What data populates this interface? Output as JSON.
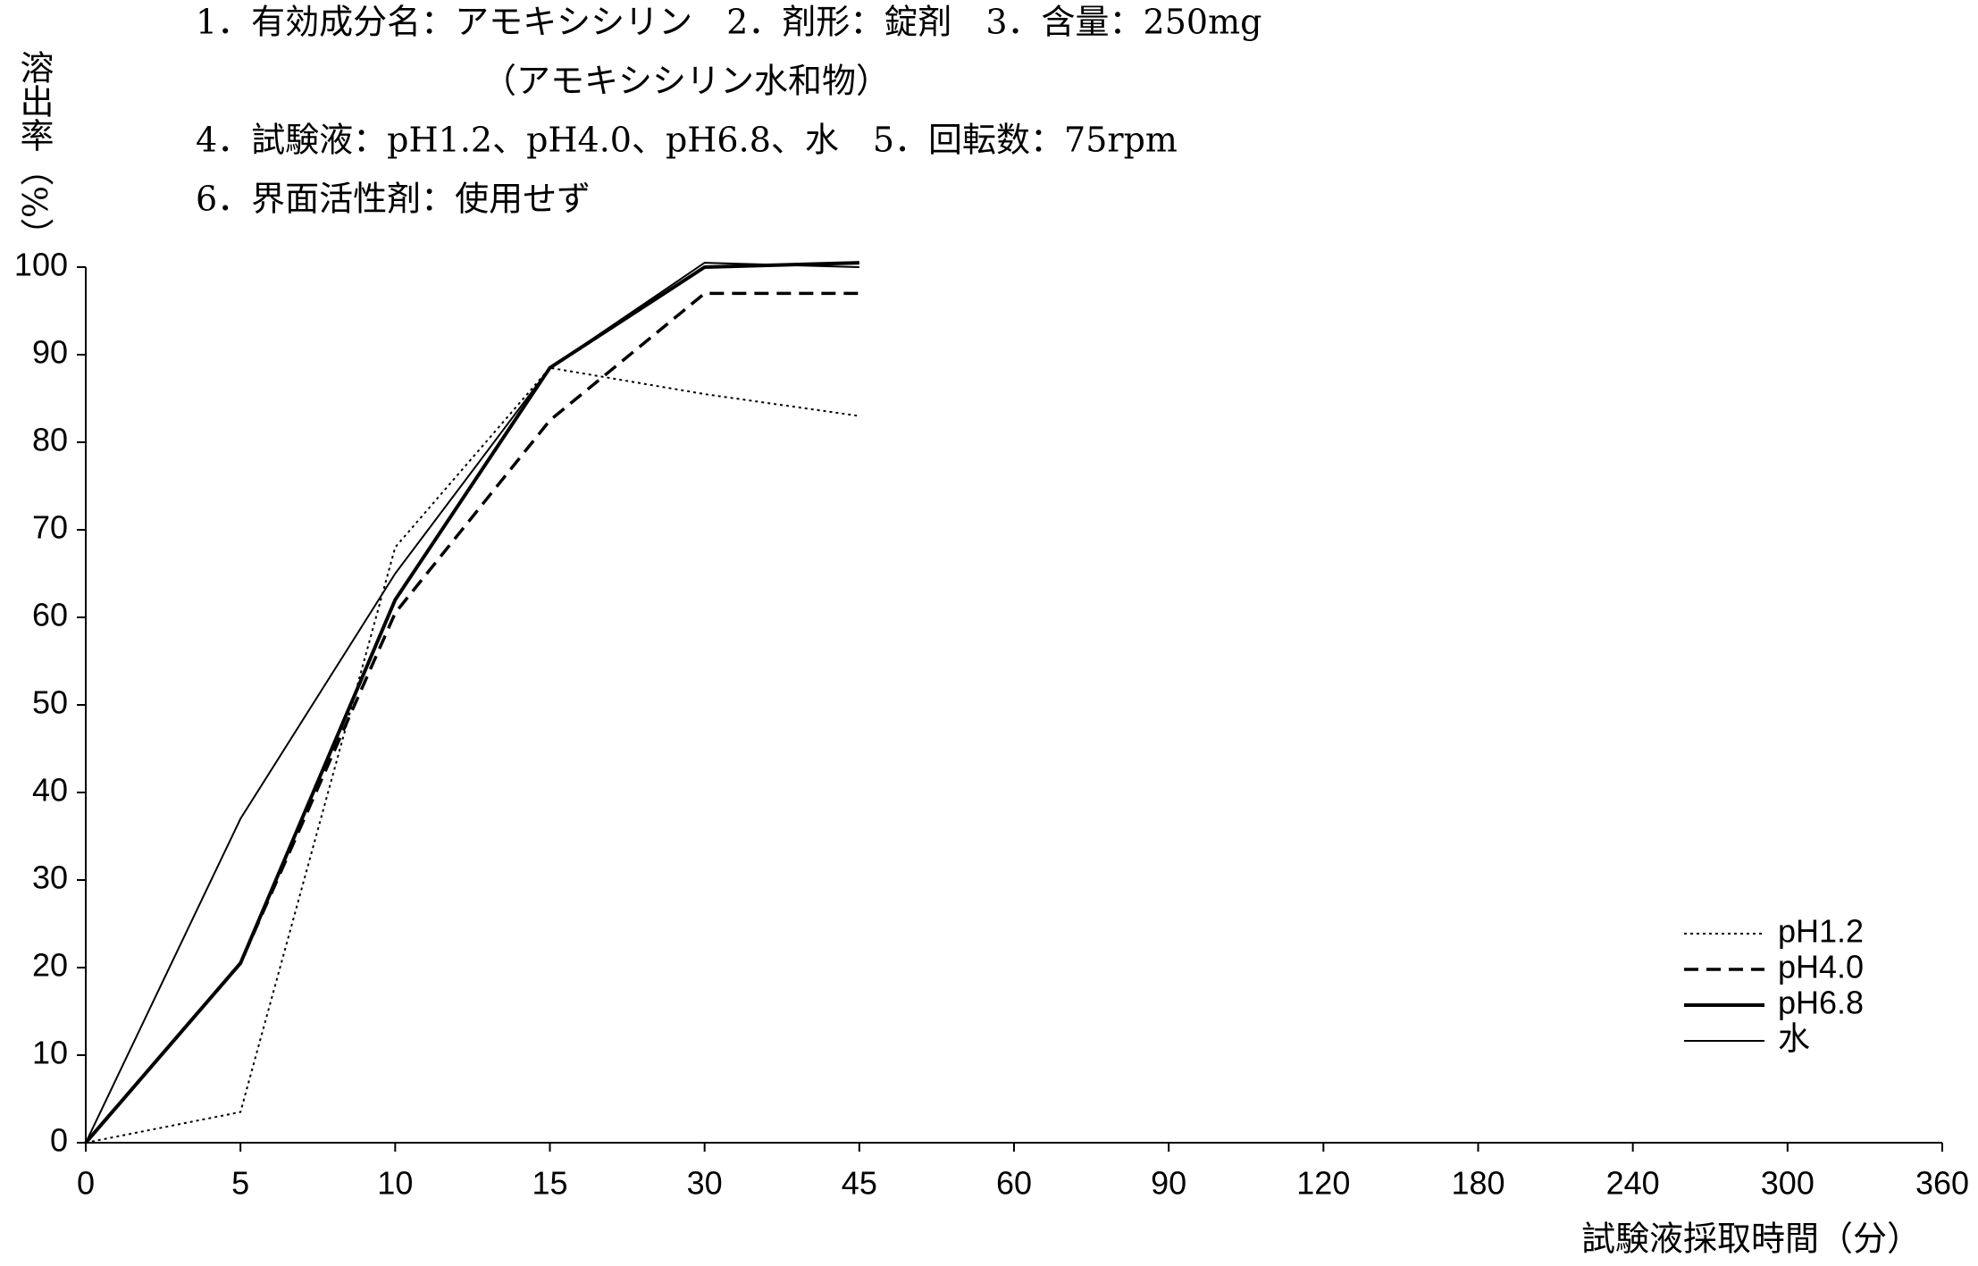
{
  "chart_data": {
    "type": "line",
    "annotations": [
      "1．有効成分名：アモキシシリン　2．剤形：錠剤　3．含量：250mg",
      "（アモキシシリン水和物）",
      "4．試験液：pH1.2、pH4.0、pH6.8、水　5．回転数：75rpm",
      "6．界面活性剤：使用せず"
    ],
    "y_label": "溶出率（%）",
    "x_label": "試験液採取時間（分）",
    "categories": [
      "0",
      "5",
      "10",
      "15",
      "30",
      "45",
      "60",
      "90",
      "120",
      "180",
      "240",
      "300",
      "360"
    ],
    "series": [
      {
        "name": "pH1.2",
        "color": "#000000",
        "style": "dotted",
        "values": [
          0,
          3.5,
          68,
          88.5,
          85.5,
          83,
          null,
          null,
          null,
          null,
          null,
          null,
          null
        ]
      },
      {
        "name": "pH4.0",
        "color": "#000000",
        "style": "dashed",
        "values": [
          0,
          20.5,
          60.5,
          82.5,
          97,
          97,
          null,
          null,
          null,
          null,
          null,
          null,
          null
        ]
      },
      {
        "name": "pH6.8",
        "color": "#000000",
        "style": "thick",
        "values": [
          0,
          20.5,
          62,
          88.5,
          100,
          100.5,
          null,
          null,
          null,
          null,
          null,
          null,
          null
        ]
      },
      {
        "name": "水",
        "color": "#000000",
        "style": "thin",
        "values": [
          0,
          37,
          65,
          88.5,
          100.5,
          100,
          null,
          null,
          null,
          null,
          null,
          null,
          null
        ]
      }
    ],
    "ylim": [
      0,
      100
    ],
    "yticks": [
      0,
      10,
      20,
      30,
      40,
      50,
      60,
      70,
      80,
      90,
      100
    ],
    "grid": false,
    "legend": "lower right"
  }
}
